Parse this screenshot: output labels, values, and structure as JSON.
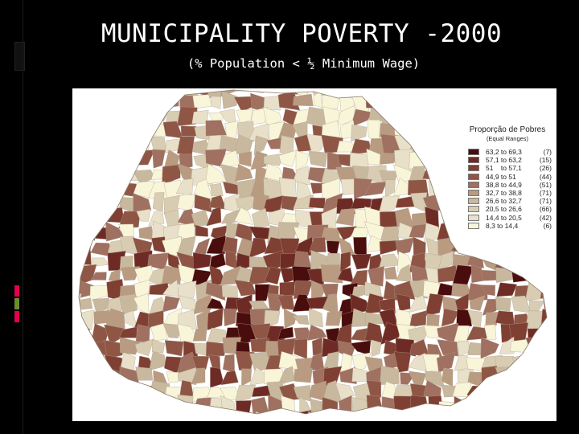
{
  "slide": {
    "title": "MUNICIPALITY POVERTY -2000",
    "subtitle": "(% Population < ½ Minimum Wage)"
  },
  "map": {
    "legend_title": "Proporção de Pobres",
    "legend_subtitle": "(Equal Ranges)",
    "classes": [
      {
        "range": "63,2 to 69,3",
        "count": "(7)",
        "color": "#4a0d0d"
      },
      {
        "range": "57,1 to 63,2",
        "count": "(15)",
        "color": "#6e2b25"
      },
      {
        "range": "51    to 57,1",
        "count": "(26)",
        "color": "#7f3f33"
      },
      {
        "range": "44,9 to 51",
        "count": "(44)",
        "color": "#8f5645"
      },
      {
        "range": "38,8 to 44,9",
        "count": "(51)",
        "color": "#a07060"
      },
      {
        "range": "32,7 to 38,8",
        "count": "(71)",
        "color": "#b89b80"
      },
      {
        "range": "26,6 to 32,7",
        "count": "(71)",
        "color": "#c8b89e"
      },
      {
        "range": "20,5 to 26,6",
        "count": "(66)",
        "color": "#d8ccb2"
      },
      {
        "range": "14,4 to 20,5",
        "count": "(42)",
        "color": "#e8e0c8"
      },
      {
        "range": "8,3 to 14,4",
        "count": "(6)",
        "color": "#f8f5d8"
      }
    ]
  },
  "accents": [
    "#e3004f",
    "#e3004f",
    "#6b8c2a",
    "#e3004f",
    "#6b8c2a"
  ]
}
